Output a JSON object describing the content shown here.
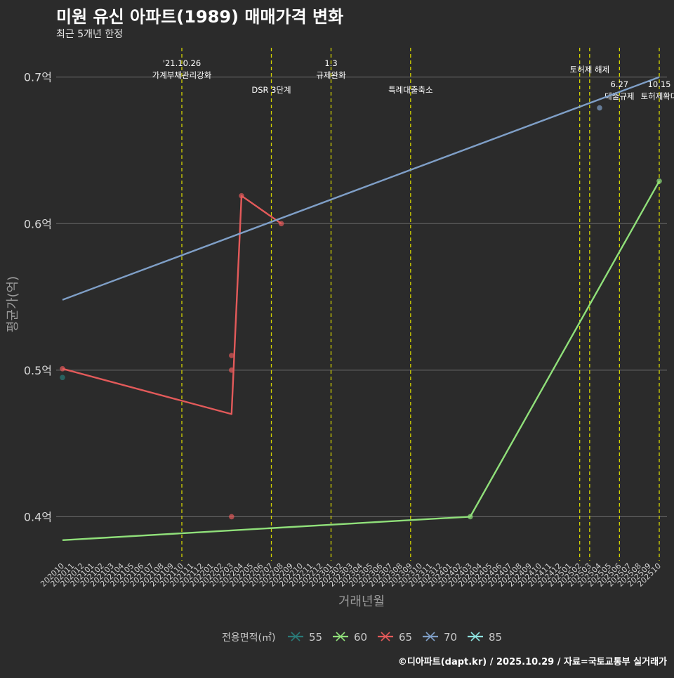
{
  "header": {
    "title": "미원 유신 아파트(1989) 매매가격 변화",
    "subtitle": "최근 5개년 한정"
  },
  "footer": {
    "caption": "©디아파트(dapt.kr) / 2025.10.29 / 자료=국토교통부 실거래가"
  },
  "chart_data": {
    "type": "line",
    "title": "미원 유신 아파트(1989) 매매가격 변화",
    "subtitle": "최근 5개년 한정",
    "xlabel": "거래년월",
    "ylabel": "평균가(억)",
    "ylim": [
      0.37,
      0.72
    ],
    "yticks": [
      0.4,
      0.5,
      0.6,
      0.7
    ],
    "ytick_labels": [
      "0.4억",
      "0.5억",
      "0.6억",
      "0.7억"
    ],
    "x_categories": [
      "202010",
      "202011",
      "202012",
      "202101",
      "202102",
      "202103",
      "202104",
      "202105",
      "202106",
      "202107",
      "202108",
      "202109",
      "202110",
      "202111",
      "202112",
      "202201",
      "202202",
      "202203",
      "202204",
      "202205",
      "202206",
      "202207",
      "202208",
      "202209",
      "202210",
      "202211",
      "202212",
      "202301",
      "202302",
      "202303",
      "202304",
      "202305",
      "202306",
      "202307",
      "202308",
      "202309",
      "202310",
      "202311",
      "202312",
      "202401",
      "202402",
      "202403",
      "202404",
      "202405",
      "202406",
      "202407",
      "202408",
      "202409",
      "202410",
      "202411",
      "202412",
      "202501",
      "202502",
      "202503",
      "202504",
      "202505",
      "202506",
      "202507",
      "202508",
      "202509",
      "202510"
    ],
    "legend_title": "전용면적(㎡)",
    "legend_position": "bottom",
    "series": [
      {
        "name": "55",
        "color": "#2a7a78",
        "points": [
          [
            "202010",
            0.495
          ]
        ],
        "trend": [],
        "line": []
      },
      {
        "name": "60",
        "color": "#90e07a",
        "points": [
          [
            "202403",
            0.4
          ],
          [
            "202510",
            0.629
          ]
        ],
        "trend": [
          [
            "202010",
            0.384
          ],
          [
            "202403",
            0.4
          ]
        ],
        "line": [
          [
            "202403",
            0.4
          ],
          [
            "202510",
            0.629
          ]
        ]
      },
      {
        "name": "65",
        "color": "#e35a5a",
        "points": [
          [
            "202010",
            0.501
          ],
          [
            "202203",
            0.4
          ],
          [
            "202203",
            0.5
          ],
          [
            "202203",
            0.51
          ],
          [
            "202204",
            0.619
          ],
          [
            "202208",
            0.6
          ]
        ],
        "trend": [],
        "line": [
          [
            "202010",
            0.501
          ],
          [
            "202203",
            0.47
          ],
          [
            "202204",
            0.619
          ],
          [
            "202208",
            0.6
          ]
        ]
      },
      {
        "name": "70",
        "color": "#7f9fc7",
        "points": [
          [
            "202504",
            0.679
          ]
        ],
        "trend": [],
        "line": [
          [
            "202010",
            0.548
          ],
          [
            "202510",
            0.7
          ]
        ]
      },
      {
        "name": "85",
        "color": "#8ee3e0",
        "points": [],
        "trend": [],
        "line": []
      }
    ],
    "events": [
      {
        "month": "202110",
        "lines": [
          "'21.10.26",
          "가계부채관리강화"
        ],
        "level": "upper"
      },
      {
        "month": "202207",
        "lines": [
          "DSR 3단계"
        ],
        "level": "lower"
      },
      {
        "month": "202301",
        "lines": [
          "1.3",
          "규제완화"
        ],
        "level": "upper"
      },
      {
        "month": "202309",
        "lines": [
          "특례대출축소"
        ],
        "level": "lower"
      },
      {
        "month": "202502",
        "lines": [],
        "level": "none"
      },
      {
        "month": "202503",
        "lines": [
          "토허제 해제"
        ],
        "level": "upper"
      },
      {
        "month": "202506",
        "lines": [
          "6.27",
          "대출규제"
        ],
        "level": "mid"
      },
      {
        "month": "202510",
        "lines": [
          "10.15",
          "토허제확대"
        ],
        "level": "mid"
      }
    ]
  }
}
